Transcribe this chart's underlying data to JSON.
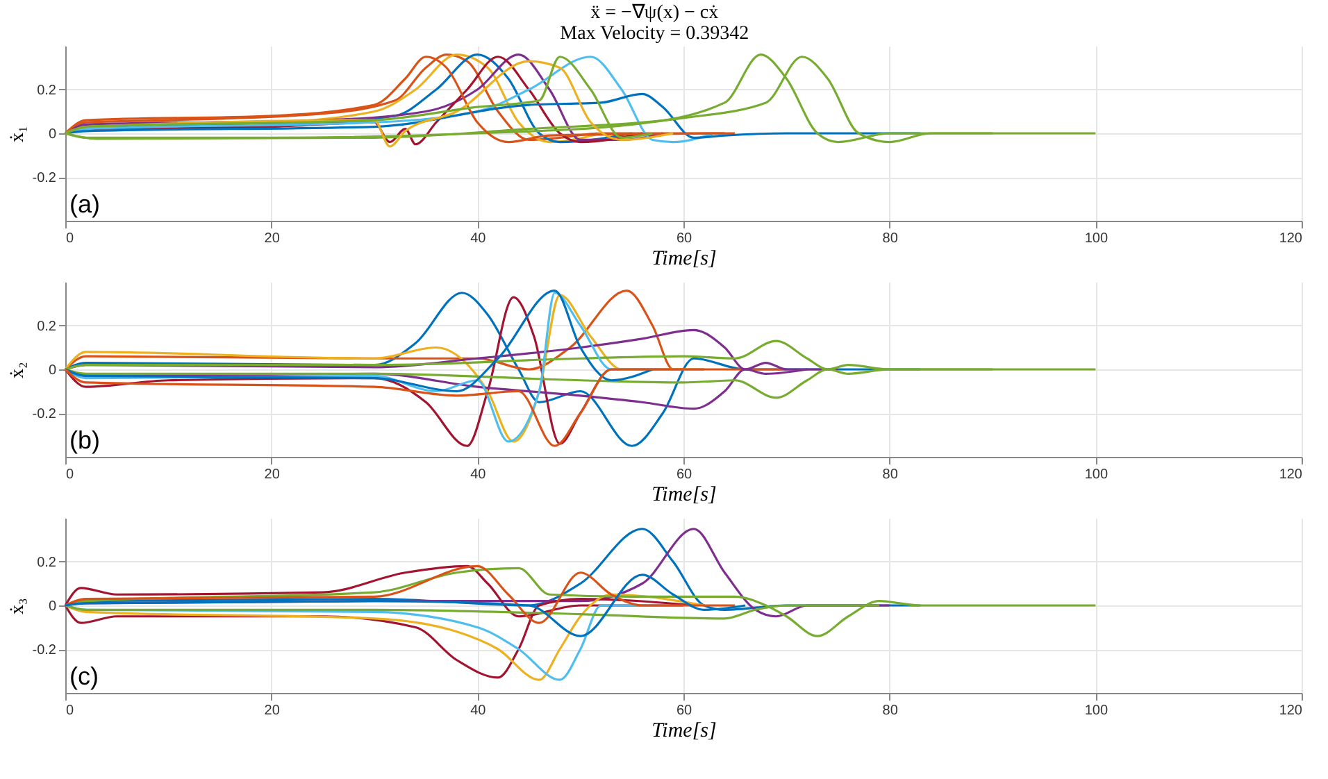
{
  "chart_data": [
    {
      "type": "line",
      "title": "ẍ = −∇ψ(x) − cẋ",
      "subtitle": "Max Velocity = 0.39342",
      "xlabel": "Time[s]",
      "ylabel": "ẋ₁",
      "xlim": [
        0,
        120
      ],
      "ylim": [
        -0.4,
        0.4
      ],
      "xticks": [
        0,
        20,
        40,
        60,
        80,
        100,
        120
      ],
      "yticks": [
        -0.2,
        0,
        0.2
      ],
      "grid": true,
      "annotations": [
        "(a)"
      ],
      "series": [
        {
          "color": "#d95319",
          "x": [
            0,
            2,
            10,
            25,
            32,
            35,
            37,
            39,
            42,
            45,
            48,
            52,
            65
          ],
          "values": [
            0,
            0.05,
            0.06,
            0.09,
            0.15,
            0.3,
            0.36,
            0.33,
            0.1,
            -0.03,
            -0.02,
            0,
            0
          ]
        },
        {
          "color": "#edb120",
          "x": [
            0,
            2,
            20,
            30,
            34,
            38,
            41,
            44,
            47,
            52
          ],
          "values": [
            0,
            0.04,
            0.05,
            0.1,
            0.2,
            0.36,
            0.3,
            0.05,
            -0.04,
            0
          ]
        },
        {
          "color": "#0072bd",
          "x": [
            0,
            2,
            20,
            32,
            36,
            40,
            43,
            46,
            48,
            55
          ],
          "values": [
            0,
            0.03,
            0.04,
            0.08,
            0.2,
            0.36,
            0.25,
            0,
            -0.04,
            0
          ]
        },
        {
          "color": "#7e2f8e",
          "x": [
            0,
            2,
            25,
            35,
            40,
            44,
            47,
            50,
            54,
            58
          ],
          "values": [
            0,
            0.04,
            0.06,
            0.1,
            0.2,
            0.36,
            0.2,
            -0.03,
            -0.03,
            0
          ]
        },
        {
          "color": "#a2142f",
          "x": [
            0,
            2,
            20,
            30,
            31.5,
            33,
            34,
            36,
            39,
            42,
            45,
            48,
            50,
            56
          ],
          "values": [
            0,
            0.02,
            0.03,
            0.05,
            -0.04,
            0.02,
            -0.05,
            0.05,
            0.2,
            0.35,
            0.2,
            0,
            -0.04,
            0
          ]
        },
        {
          "color": "#4dbeee",
          "x": [
            0,
            2,
            30,
            40,
            45,
            51,
            54,
            57,
            59,
            63
          ],
          "values": [
            0,
            0.02,
            0.05,
            0.1,
            0.2,
            0.35,
            0.2,
            -0.03,
            -0.04,
            0
          ]
        },
        {
          "color": "#0072bd",
          "x": [
            0,
            2,
            30,
            45,
            52,
            56,
            58,
            61,
            64,
            70,
            83
          ],
          "values": [
            0,
            0.01,
            0.03,
            0.13,
            0.14,
            0.18,
            0.12,
            -0.02,
            -0.01,
            0,
            0
          ]
        },
        {
          "color": "#77ac30",
          "x": [
            0,
            2,
            20,
            40,
            55,
            64,
            67.5,
            70,
            73,
            75,
            80,
            100
          ],
          "values": [
            0,
            -0.02,
            -0.02,
            0,
            0.04,
            0.14,
            0.36,
            0.25,
            0,
            -0.04,
            0,
            0
          ]
        },
        {
          "color": "#77ac30",
          "x": [
            0,
            3,
            30,
            45,
            60,
            68,
            71.5,
            74,
            77,
            80,
            84,
            90
          ],
          "values": [
            0,
            -0.025,
            -0.02,
            0.02,
            0.07,
            0.14,
            0.35,
            0.25,
            0,
            -0.04,
            0,
            0
          ]
        },
        {
          "color": "#d95319",
          "x": [
            0,
            2,
            20,
            30,
            33,
            35,
            37,
            40,
            43,
            47,
            64
          ],
          "values": [
            0,
            0.06,
            0.08,
            0.13,
            0.25,
            0.35,
            0.3,
            0.05,
            -0.04,
            -0.01,
            0
          ]
        },
        {
          "color": "#edb120",
          "x": [
            0,
            2,
            30,
            31.5,
            33,
            38,
            45,
            48,
            51,
            54,
            59
          ],
          "values": [
            0,
            0.03,
            0.06,
            -0.06,
            0.01,
            0.1,
            0.33,
            0.3,
            0.05,
            -0.03,
            0
          ]
        },
        {
          "color": "#77ac30",
          "x": [
            0,
            2,
            30,
            40,
            46,
            48,
            51,
            54,
            57
          ],
          "values": [
            0,
            0.03,
            0.06,
            0.12,
            0.15,
            0.35,
            0.2,
            -0.02,
            0
          ]
        }
      ]
    },
    {
      "type": "line",
      "xlabel": "Time[s]",
      "ylabel": "ẋ₂",
      "xlim": [
        0,
        120
      ],
      "ylim": [
        -0.4,
        0.4
      ],
      "xticks": [
        0,
        20,
        40,
        60,
        80,
        100,
        120
      ],
      "yticks": [
        -0.2,
        0,
        0.2
      ],
      "grid": true,
      "annotations": [
        "(b)"
      ],
      "series": [
        {
          "color": "#0072bd",
          "x": [
            0,
            2,
            30,
            34,
            38.5,
            41,
            44,
            46,
            50,
            55,
            58,
            61,
            66,
            83
          ],
          "values": [
            0,
            0.03,
            0.02,
            0.12,
            0.35,
            0.25,
            0,
            -0.15,
            -0.1,
            -0.35,
            -0.2,
            0.05,
            0,
            0
          ]
        },
        {
          "color": "#a2142f",
          "x": [
            0,
            2,
            10,
            30,
            35,
            39,
            41,
            43.5,
            45.5,
            48,
            50,
            53,
            60
          ],
          "values": [
            0,
            -0.08,
            -0.05,
            -0.04,
            -0.15,
            -0.35,
            -0.1,
            0.33,
            0.15,
            -0.34,
            -0.2,
            0,
            0
          ]
        },
        {
          "color": "#d95319",
          "x": [
            0,
            2,
            30,
            40,
            45,
            49,
            54.5,
            57,
            59,
            62,
            70
          ],
          "values": [
            0,
            0.06,
            0.05,
            0.05,
            0,
            0.1,
            0.36,
            0.2,
            0,
            0,
            0
          ]
        },
        {
          "color": "#edb120",
          "x": [
            0,
            2,
            30,
            36,
            41,
            43.5,
            46,
            48,
            51,
            54,
            61
          ],
          "values": [
            0,
            0.08,
            0.05,
            0.1,
            -0.1,
            -0.33,
            -0.1,
            0.34,
            0.15,
            0,
            0
          ]
        },
        {
          "color": "#7e2f8e",
          "x": [
            0,
            2,
            30,
            40,
            50,
            56,
            61,
            64,
            66,
            68,
            70,
            75
          ],
          "values": [
            0,
            0.02,
            0.01,
            0.05,
            0.1,
            0.14,
            0.18,
            0.1,
            0,
            0.03,
            0,
            0
          ]
        },
        {
          "color": "#7e2f8e",
          "x": [
            0,
            2,
            30,
            40,
            50,
            56,
            61,
            64,
            66,
            68,
            72
          ],
          "values": [
            0,
            -0.03,
            -0.02,
            -0.08,
            -0.12,
            -0.15,
            -0.18,
            -0.1,
            0,
            -0.02,
            0
          ]
        },
        {
          "color": "#77ac30",
          "x": [
            0,
            2,
            30,
            50,
            60,
            65,
            69,
            72,
            74,
            76,
            80,
            100
          ],
          "values": [
            0,
            0.02,
            0.02,
            0.05,
            0.06,
            0.05,
            0.13,
            0.05,
            0,
            0.02,
            0,
            0
          ]
        },
        {
          "color": "#77ac30",
          "x": [
            0,
            2,
            30,
            50,
            60,
            65,
            69,
            72,
            74,
            76,
            80,
            90
          ],
          "values": [
            0,
            -0.02,
            -0.02,
            -0.05,
            -0.06,
            -0.05,
            -0.13,
            -0.05,
            0,
            -0.02,
            0,
            0
          ]
        },
        {
          "color": "#4dbeee",
          "x": [
            0,
            2,
            30,
            36,
            40,
            43,
            46,
            47.5,
            50,
            53,
            58
          ],
          "values": [
            0,
            -0.04,
            -0.03,
            -0.1,
            -0.05,
            -0.33,
            -0.1,
            0.35,
            0.2,
            0,
            0
          ]
        },
        {
          "color": "#0072bd",
          "x": [
            0,
            2,
            30,
            38,
            42,
            47.5,
            50,
            53,
            57
          ],
          "values": [
            0,
            -0.03,
            -0.04,
            -0.1,
            0.05,
            0.36,
            0.1,
            -0.05,
            0
          ]
        },
        {
          "color": "#d95319",
          "x": [
            0,
            2,
            30,
            38,
            44,
            47.5,
            50,
            53,
            62
          ],
          "values": [
            0,
            -0.06,
            -0.08,
            -0.12,
            -0.1,
            -0.35,
            -0.2,
            0,
            0
          ]
        }
      ]
    },
    {
      "type": "line",
      "xlabel": "Time[s]",
      "ylabel": "ẋ₃",
      "xlim": [
        0,
        120
      ],
      "ylim": [
        -0.4,
        0.4
      ],
      "xticks": [
        0,
        20,
        40,
        60,
        80,
        100,
        120
      ],
      "yticks": [
        -0.2,
        0,
        0.2
      ],
      "grid": true,
      "annotations": [
        "(c)"
      ],
      "series": [
        {
          "color": "#0072bd",
          "x": [
            0,
            2,
            30,
            45,
            50,
            56,
            59,
            62,
            64,
            70,
            83
          ],
          "values": [
            0,
            0.02,
            0.03,
            0,
            0.1,
            0.35,
            0.2,
            0,
            -0.02,
            0,
            0
          ]
        },
        {
          "color": "#7e2f8e",
          "x": [
            0,
            2,
            30,
            50,
            56,
            61,
            64,
            67,
            69,
            72,
            80
          ],
          "values": [
            0,
            0.01,
            0.02,
            0.02,
            0.1,
            0.35,
            0.15,
            -0.02,
            -0.05,
            0,
            0
          ]
        },
        {
          "color": "#a2142f",
          "x": [
            0,
            1.5,
            5,
            25,
            33,
            39,
            41,
            44,
            50,
            60
          ],
          "values": [
            0,
            0.08,
            0.05,
            0.06,
            0.15,
            0.18,
            0.1,
            -0.05,
            0,
            0
          ]
        },
        {
          "color": "#a2142f",
          "x": [
            0,
            1.5,
            5,
            25,
            34,
            38,
            42,
            44,
            46,
            50,
            61
          ],
          "values": [
            0,
            -0.08,
            -0.05,
            -0.05,
            -0.1,
            -0.25,
            -0.33,
            -0.2,
            0,
            0.03,
            0
          ]
        },
        {
          "color": "#edb120",
          "x": [
            0,
            2,
            30,
            38,
            42,
            46,
            48,
            50,
            53,
            62
          ],
          "values": [
            0,
            -0.03,
            -0.06,
            -0.12,
            -0.2,
            -0.34,
            -0.2,
            -0.05,
            0.05,
            0
          ]
        },
        {
          "color": "#4dbeee",
          "x": [
            0,
            2,
            30,
            40,
            44,
            48,
            50,
            52,
            58
          ],
          "values": [
            0,
            -0.02,
            -0.03,
            -0.1,
            -0.2,
            -0.34,
            -0.2,
            0,
            0
          ]
        },
        {
          "color": "#77ac30",
          "x": [
            0,
            2,
            30,
            38,
            44,
            47,
            55,
            65,
            68,
            70,
            73,
            76,
            79,
            83,
            100
          ],
          "values": [
            0,
            0.02,
            0.06,
            0.15,
            0.17,
            0.05,
            0.04,
            0.04,
            0,
            -0.05,
            -0.14,
            -0.05,
            0.02,
            0,
            0
          ]
        },
        {
          "color": "#77ac30",
          "x": [
            0,
            2,
            30,
            50,
            64,
            67,
            70,
            79
          ],
          "values": [
            0,
            -0.02,
            -0.02,
            -0.04,
            -0.06,
            -0.02,
            0,
            0
          ]
        },
        {
          "color": "#d95319",
          "x": [
            0,
            2,
            30,
            40,
            43,
            46,
            50,
            53,
            56,
            65
          ],
          "values": [
            0,
            0.03,
            0.04,
            0.18,
            0.05,
            -0.08,
            0.15,
            0.05,
            0,
            0
          ]
        },
        {
          "color": "#0072bd",
          "x": [
            0,
            2,
            30,
            45,
            50,
            56,
            59,
            62,
            66
          ],
          "values": [
            0,
            0.01,
            0.02,
            0,
            -0.14,
            0.14,
            0.05,
            -0.02,
            0
          ]
        }
      ]
    }
  ]
}
